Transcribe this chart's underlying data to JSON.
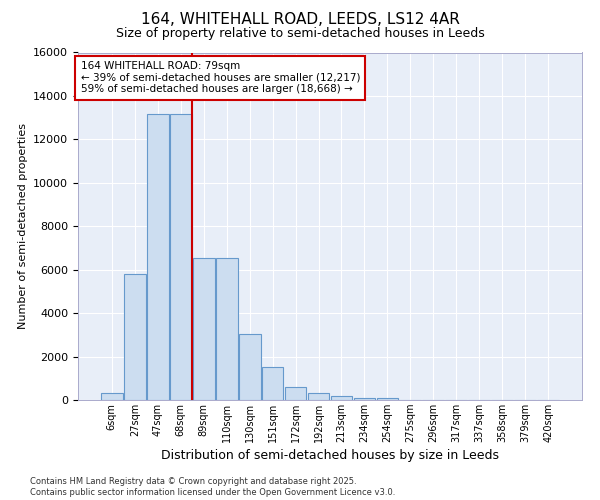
{
  "title_line1": "164, WHITEHALL ROAD, LEEDS, LS12 4AR",
  "title_line2": "Size of property relative to semi-detached houses in Leeds",
  "xlabel": "Distribution of semi-detached houses by size in Leeds",
  "ylabel": "Number of semi-detached properties",
  "bin_labels": [
    "6sqm",
    "27sqm",
    "47sqm",
    "68sqm",
    "89sqm",
    "110sqm",
    "130sqm",
    "151sqm",
    "172sqm",
    "192sqm",
    "213sqm",
    "234sqm",
    "254sqm",
    "275sqm",
    "296sqm",
    "317sqm",
    "337sqm",
    "358sqm",
    "379sqm",
    "420sqm"
  ],
  "bar_values": [
    300,
    5800,
    13150,
    13150,
    6550,
    6550,
    3050,
    1500,
    600,
    300,
    200,
    100,
    100,
    0,
    0,
    0,
    0,
    0,
    0,
    0
  ],
  "bar_color": "#ccddf0",
  "bar_edge_color": "#6699cc",
  "red_line_x": 3.5,
  "annotation_title": "164 WHITEHALL ROAD: 79sqm",
  "annotation_line2": "← 39% of semi-detached houses are smaller (12,217)",
  "annotation_line3": "59% of semi-detached houses are larger (18,668) →",
  "ylim": [
    0,
    16000
  ],
  "yticks": [
    0,
    2000,
    4000,
    6000,
    8000,
    10000,
    12000,
    14000,
    16000
  ],
  "footer_line1": "Contains HM Land Registry data © Crown copyright and database right 2025.",
  "footer_line2": "Contains public sector information licensed under the Open Government Licence v3.0.",
  "fig_bg": "#ffffff",
  "plot_bg": "#e8eef8"
}
